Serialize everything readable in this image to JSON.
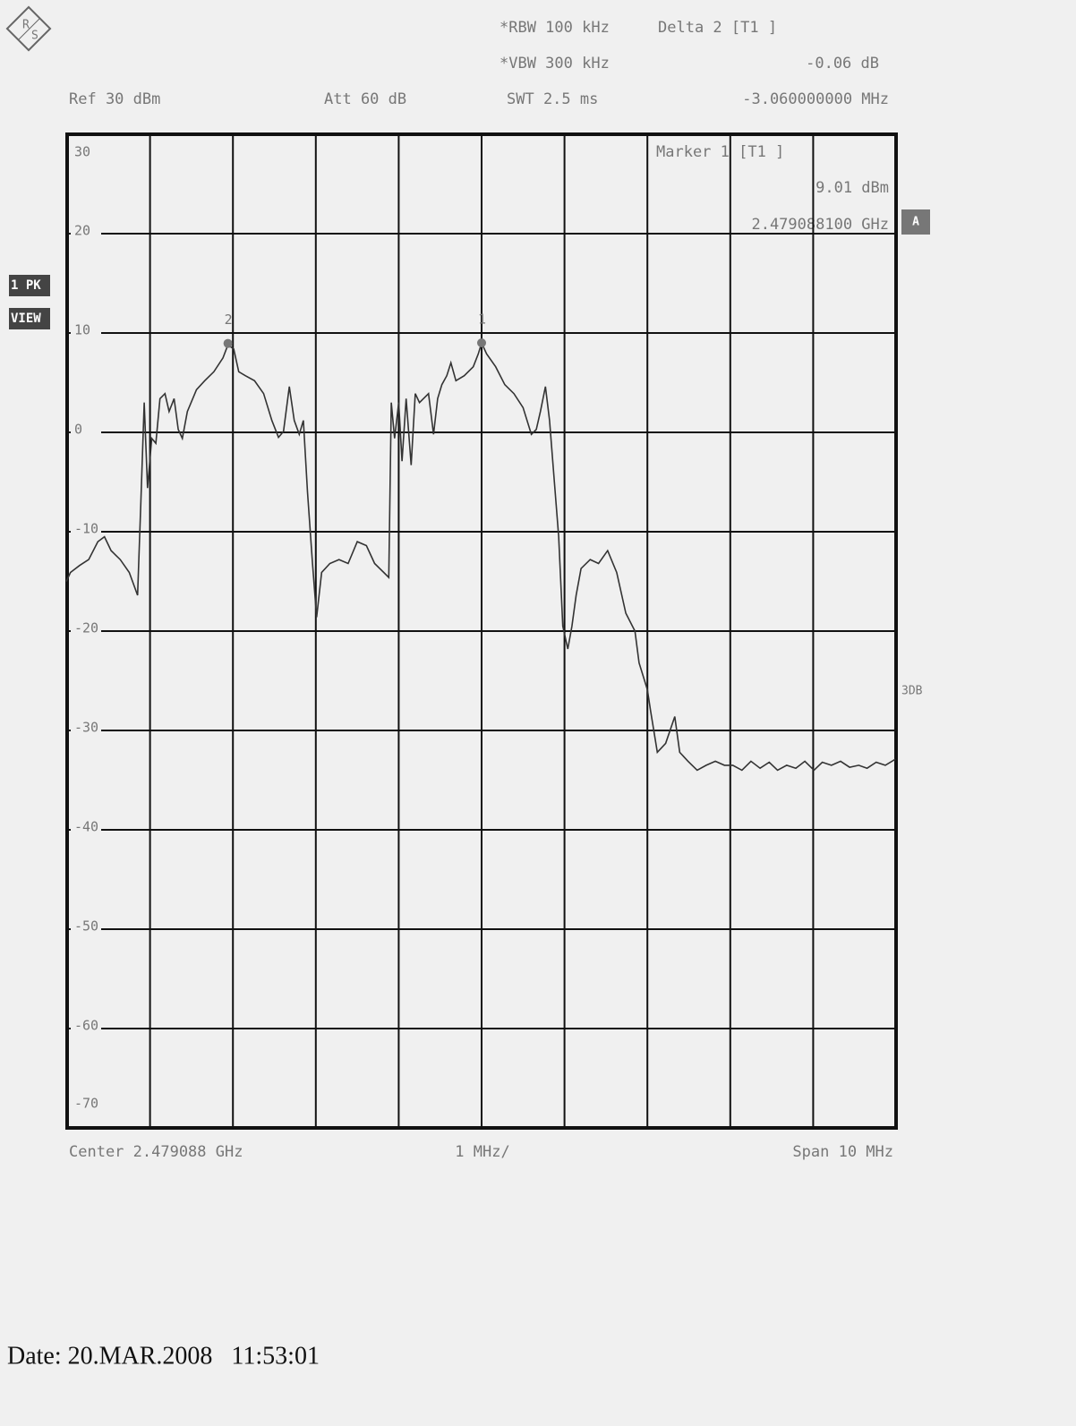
{
  "header": {
    "logo": [
      "R",
      "S"
    ],
    "rbw": "*RBW 100 kHz",
    "delta": "Delta 2 [T1 ]",
    "vbw": "*VBW 300 kHz",
    "delta_level": "-0.06 dB",
    "ref": "Ref 30 dBm",
    "att": "Att 60 dB",
    "swt": "SWT 2.5 ms",
    "delta_freq": "-3.060000000 MHz"
  },
  "side": {
    "trace": "1 PK",
    "view": "VIEW",
    "a": "A",
    "db": "3DB"
  },
  "chart_data": {
    "type": "line",
    "marker_info": {
      "title": "Marker 1 [T1 ]",
      "level": "9.01 dBm",
      "freq": "2.479088100 GHz"
    },
    "center": "Center 2.479088 GHz",
    "div": "1 MHz/",
    "span": "Span 10 MHz",
    "xlim": [
      -5,
      5
    ],
    "ylim": [
      -70,
      30
    ],
    "yticks": [
      30,
      20,
      10,
      0,
      -10,
      -20,
      -30,
      -40,
      -50,
      -60,
      -70
    ],
    "grid": true,
    "color": "#333333",
    "x": [
      -5.01,
      -4.96,
      -4.85,
      -4.74,
      -4.63,
      -4.55,
      -4.47,
      -4.36,
      -4.25,
      -4.15,
      -4.11,
      -4.07,
      -4.03,
      -3.98,
      -3.93,
      -3.88,
      -3.82,
      -3.77,
      -3.71,
      -3.66,
      -3.61,
      -3.55,
      -3.44,
      -3.34,
      -3.23,
      -3.12,
      -3.06,
      -2.99,
      -2.93,
      -2.85,
      -2.74,
      -2.63,
      -2.53,
      -2.45,
      -2.39,
      -2.32,
      -2.26,
      -2.2,
      -2.15,
      -2.1,
      -2.04,
      -1.99,
      -1.93,
      -1.83,
      -1.72,
      -1.61,
      -1.5,
      -1.39,
      -1.29,
      -1.18,
      -1.12,
      -1.09,
      -1.05,
      -1.0,
      -0.96,
      -0.91,
      -0.85,
      -0.8,
      -0.75,
      -0.64,
      -0.58,
      -0.53,
      -0.48,
      -0.42,
      -0.37,
      -0.31,
      -0.21,
      -0.1,
      -0.04,
      0,
      0.06,
      0.17,
      0.28,
      0.39,
      0.5,
      0.6,
      0.66,
      0.71,
      0.77,
      0.82,
      0.87,
      0.93,
      0.98,
      1.04,
      1.09,
      1.14,
      1.2,
      1.31,
      1.41,
      1.52,
      1.63,
      1.74,
      1.85,
      1.9,
      2.0,
      2.04,
      2.12,
      2.22,
      2.33,
      2.39,
      2.49,
      2.6,
      2.71,
      2.82,
      2.93,
      3.03,
      3.14,
      3.25,
      3.36,
      3.47,
      3.57,
      3.68,
      3.79,
      3.9,
      4.01,
      4.11,
      4.22,
      4.33,
      4.44,
      4.55,
      4.65,
      4.76,
      4.87,
      4.99
    ],
    "values": [
      -15.0,
      -14.1,
      -13.4,
      -12.8,
      -11.0,
      -10.5,
      -11.9,
      -12.8,
      -14.1,
      -16.4,
      -6.9,
      3.0,
      -5.6,
      -0.6,
      -1.1,
      3.4,
      3.9,
      2.1,
      3.4,
      0.3,
      -0.6,
      2.1,
      4.3,
      5.2,
      6.1,
      7.5,
      8.8,
      8.4,
      6.1,
      5.7,
      5.2,
      3.9,
      1.2,
      -0.5,
      0.1,
      4.6,
      1.2,
      -0.2,
      1.2,
      -6.0,
      -13.2,
      -18.6,
      -14.1,
      -13.2,
      -12.8,
      -13.2,
      -11.0,
      -11.4,
      -13.2,
      -14.1,
      -14.6,
      3.0,
      -0.6,
      3.0,
      -2.9,
      3.4,
      -3.3,
      3.9,
      3.0,
      3.9,
      -0.2,
      3.4,
      4.8,
      5.7,
      7.0,
      5.2,
      5.7,
      6.6,
      7.9,
      9.0,
      7.9,
      6.6,
      4.8,
      3.9,
      2.5,
      -0.2,
      0.3,
      2.1,
      4.6,
      1.2,
      -4.2,
      -10.5,
      -19.5,
      -21.8,
      -19.5,
      -16.4,
      -13.7,
      -12.8,
      -13.2,
      -11.9,
      -14.1,
      -18.2,
      -20.0,
      -23.2,
      -25.9,
      -28.1,
      -32.2,
      -31.3,
      -28.6,
      -32.2,
      -33.1,
      -34.0,
      -33.5,
      -33.1,
      -33.5,
      -33.5,
      -34.0,
      -33.1,
      -33.8,
      -33.2,
      -34.0,
      -33.5,
      -33.8,
      -33.1,
      -34.0,
      -33.2,
      -33.5,
      -33.1,
      -33.7,
      -33.5,
      -33.8,
      -33.2,
      -33.5,
      -32.9
    ],
    "markers": [
      {
        "label": "1",
        "x": 0,
        "y": 9.01
      },
      {
        "label": "2",
        "x": -3.06,
        "y": 8.95
      }
    ]
  },
  "footer": {
    "date": "Date: 20.MAR.2008   11:53:01"
  }
}
